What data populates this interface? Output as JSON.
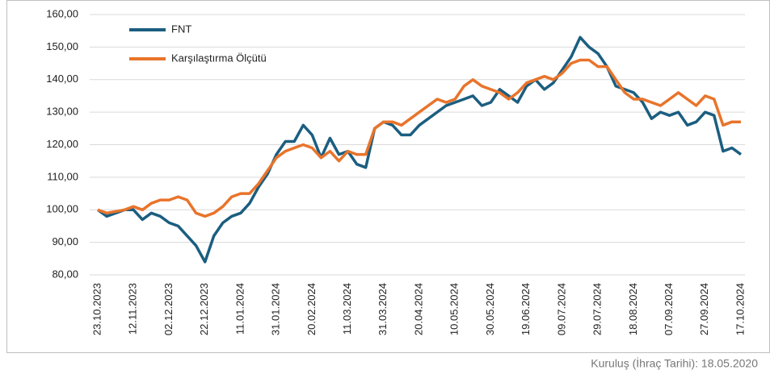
{
  "chart_data": {
    "type": "line",
    "categories": [
      "23.10.2023",
      null,
      null,
      null,
      "12.11.2023",
      null,
      null,
      null,
      "02.12.2023",
      null,
      null,
      null,
      "22.12.2023",
      null,
      null,
      null,
      "11.01.2024",
      null,
      null,
      null,
      "31.01.2024",
      null,
      null,
      null,
      "20.02.2024",
      null,
      null,
      null,
      "11.03.2024",
      null,
      null,
      null,
      "31.03.2024",
      null,
      null,
      null,
      "20.04.2024",
      null,
      null,
      null,
      "10.05.2024",
      null,
      null,
      null,
      "30.05.2024",
      null,
      null,
      null,
      "19.06.2024",
      null,
      null,
      null,
      "09.07.2024",
      null,
      null,
      null,
      "29.07.2024",
      null,
      null,
      null,
      "18.08.2024",
      null,
      null,
      null,
      "07.09.2024",
      null,
      null,
      null,
      "27.09.2024",
      null,
      null,
      null,
      "17.10.2024"
    ],
    "series": [
      {
        "name": "FNT",
        "color": "#1b5e80",
        "values": [
          100,
          98,
          99,
          100,
          100,
          97,
          99,
          98,
          96,
          95,
          92,
          89,
          84,
          92,
          96,
          98,
          99,
          102,
          107,
          111,
          117,
          121,
          121,
          126,
          123,
          116,
          122,
          117,
          118,
          114,
          113,
          125,
          127,
          126,
          123,
          123,
          126,
          128,
          130,
          132,
          133,
          134,
          135,
          132,
          133,
          137,
          135,
          133,
          138,
          140,
          137,
          139,
          143,
          147,
          153,
          150,
          148,
          144,
          138,
          137,
          136,
          133,
          128,
          130,
          129,
          130,
          126,
          127,
          130,
          129,
          118,
          119,
          117
        ]
      },
      {
        "name": "Karşılaştırma Ölçütü",
        "color": "#e8742b",
        "values": [
          100,
          99,
          99.5,
          100,
          101,
          100,
          102,
          103,
          103,
          104,
          103,
          99,
          98,
          99,
          101,
          104,
          105,
          105,
          108,
          112,
          116,
          118,
          119,
          120,
          119,
          116,
          118,
          115,
          118,
          117,
          117,
          125,
          127,
          127,
          126,
          128,
          130,
          132,
          134,
          133,
          134,
          138,
          140,
          138,
          137,
          136,
          134,
          136,
          139,
          140,
          141,
          140,
          142,
          145,
          146,
          146,
          144,
          144,
          140,
          136,
          134,
          134,
          133,
          132,
          134,
          136,
          134,
          132,
          135,
          134,
          126,
          127,
          127
        ]
      }
    ],
    "ylim": [
      80,
      160
    ],
    "yticks": [
      {
        "value": 80,
        "label": "80,00"
      },
      {
        "value": 90,
        "label": "90,00"
      },
      {
        "value": 100,
        "label": "100,00"
      },
      {
        "value": 110,
        "label": "110,00"
      },
      {
        "value": 120,
        "label": "120,00"
      },
      {
        "value": 130,
        "label": "130,00"
      },
      {
        "value": 140,
        "label": "140,00"
      },
      {
        "value": 150,
        "label": "150,00"
      },
      {
        "value": 160,
        "label": "160,00"
      }
    ],
    "grid": true,
    "legend": "upper left",
    "note": "Kuruluş (İhraç Tarihi): 18.05.2020"
  }
}
